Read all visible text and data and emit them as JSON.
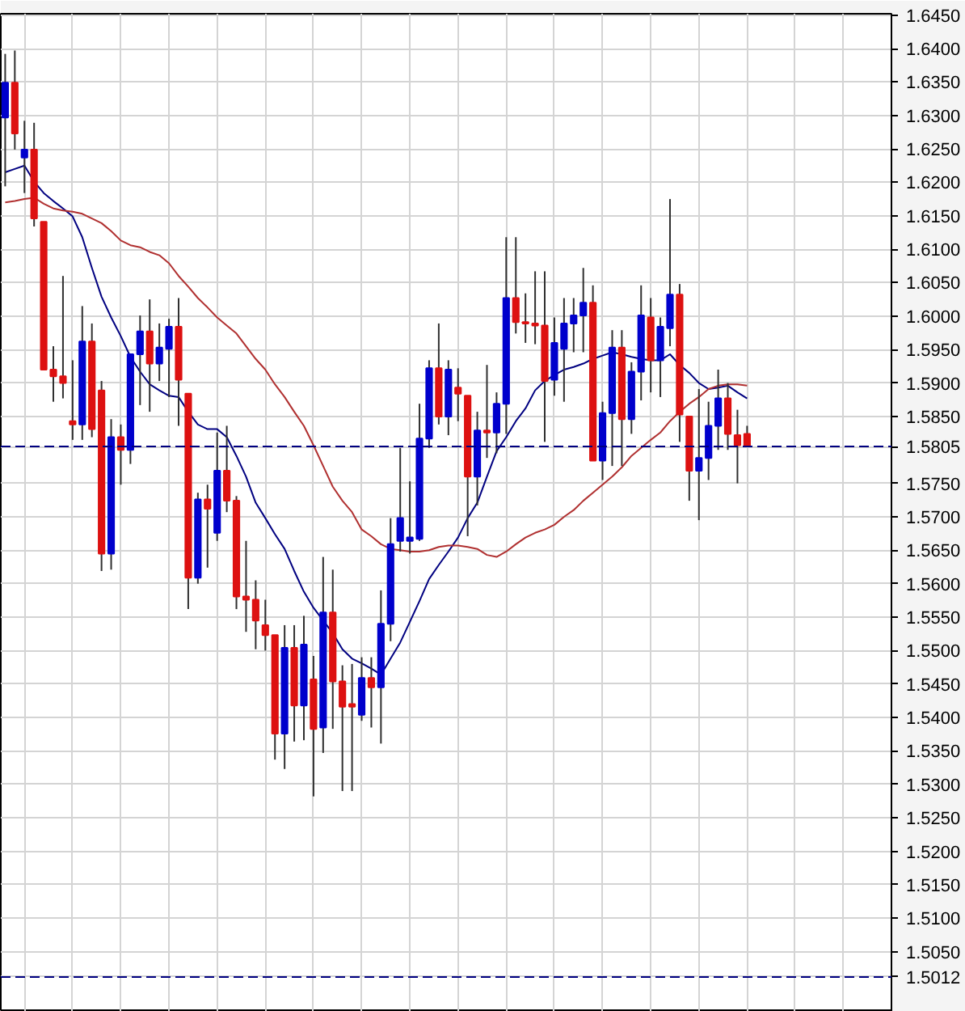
{
  "chart_data": {
    "type": "candlestick",
    "categories": [
      null,
      null,
      null,
      null,
      null,
      null,
      null,
      null,
      null,
      null,
      null,
      null,
      null,
      null,
      null,
      null,
      null,
      null,
      null,
      null,
      null,
      null,
      null,
      null,
      null,
      null,
      null,
      null,
      null,
      null,
      null,
      null,
      null,
      null,
      null,
      null,
      null,
      null,
      null,
      null,
      null,
      null,
      null,
      null,
      null,
      null,
      null,
      null,
      null,
      null,
      null,
      null,
      null,
      null,
      null,
      null,
      null,
      null,
      null,
      null,
      null,
      null,
      null,
      null,
      null,
      null,
      null,
      null,
      null,
      null,
      null,
      null,
      null,
      null,
      null,
      null,
      null,
      null
    ],
    "ohlc": [
      [
        1.6297,
        1.6392,
        1.6194,
        1.6349
      ],
      [
        1.6349,
        1.6397,
        1.6249,
        1.6273
      ],
      [
        1.6237,
        1.6292,
        1.6184,
        1.6249
      ],
      [
        1.6249,
        1.6289,
        1.6134,
        1.6146
      ],
      [
        1.6141,
        1.6141,
        1.592,
        1.592
      ],
      [
        1.592,
        1.5955,
        1.5872,
        1.591
      ],
      [
        1.591,
        1.606,
        1.5877,
        1.59
      ],
      [
        1.5843,
        1.5934,
        1.5815,
        1.5838
      ],
      [
        1.5838,
        1.6015,
        1.5815,
        1.5962
      ],
      [
        1.5962,
        1.5989,
        1.5819,
        1.5831
      ],
      [
        1.5889,
        1.5903,
        1.5619,
        1.5645
      ],
      [
        1.5645,
        1.5846,
        1.5621,
        1.5819
      ],
      [
        1.5819,
        1.5838,
        1.5748,
        1.58
      ],
      [
        1.58,
        1.5943,
        1.5779,
        1.5943
      ],
      [
        1.5943,
        1.6001,
        1.5867,
        1.5977
      ],
      [
        1.5977,
        1.6025,
        1.5857,
        1.5929
      ],
      [
        1.5929,
        1.5989,
        1.5903,
        1.5953
      ],
      [
        1.5951,
        1.5996,
        1.5879,
        1.5984
      ],
      [
        1.5984,
        1.6027,
        1.5836,
        1.5905
      ],
      [
        1.5884,
        1.5884,
        1.5562,
        1.5609
      ],
      [
        1.5609,
        1.5736,
        1.56,
        1.5726
      ],
      [
        1.5726,
        1.5748,
        1.5624,
        1.5712
      ],
      [
        1.5676,
        1.5826,
        1.5664,
        1.5769
      ],
      [
        1.5769,
        1.5836,
        1.5707,
        1.5724
      ],
      [
        1.5724,
        1.5731,
        1.5562,
        1.5581
      ],
      [
        1.5581,
        1.5664,
        1.5528,
        1.5576
      ],
      [
        1.5576,
        1.5605,
        1.5502,
        1.5545
      ],
      [
        1.5538,
        1.5576,
        1.55,
        1.5523
      ],
      [
        1.5523,
        1.5523,
        1.5337,
        1.5376
      ],
      [
        1.5376,
        1.5538,
        1.5323,
        1.5504
      ],
      [
        1.5504,
        1.5538,
        1.5364,
        1.5418
      ],
      [
        1.5418,
        1.5552,
        1.5366,
        1.5509
      ],
      [
        1.5457,
        1.5492,
        1.5282,
        1.5383
      ],
      [
        1.5385,
        1.564,
        1.5347,
        1.5557
      ],
      [
        1.5557,
        1.5621,
        1.5383,
        1.5454
      ],
      [
        1.5454,
        1.5478,
        1.529,
        1.5416
      ],
      [
        1.542,
        1.548,
        1.529,
        1.5416
      ],
      [
        1.5404,
        1.549,
        1.5395,
        1.5459
      ],
      [
        1.5459,
        1.549,
        1.5385,
        1.5445
      ],
      [
        1.5445,
        1.559,
        1.5361,
        1.554
      ],
      [
        1.554,
        1.5698,
        1.5514,
        1.5659
      ],
      [
        1.5664,
        1.5803,
        1.5648,
        1.5698
      ],
      [
        1.5664,
        1.5753,
        1.5645,
        1.5669
      ],
      [
        1.5667,
        1.5869,
        1.5664,
        1.5817
      ],
      [
        1.5817,
        1.5934,
        1.5803,
        1.5922
      ],
      [
        1.5922,
        1.5989,
        1.5838,
        1.585
      ],
      [
        1.585,
        1.5934,
        1.5822,
        1.592
      ],
      [
        1.5893,
        1.5922,
        1.5843,
        1.5884
      ],
      [
        1.5881,
        1.5881,
        1.5671,
        1.576
      ],
      [
        1.576,
        1.5857,
        1.5717,
        1.5829
      ],
      [
        1.5829,
        1.5927,
        1.5788,
        1.5826
      ],
      [
        1.5826,
        1.5886,
        1.5795,
        1.5869
      ],
      [
        1.5869,
        1.6118,
        1.5824,
        1.6027
      ],
      [
        1.6027,
        1.6118,
        1.5974,
        1.5991
      ],
      [
        1.5991,
        1.6034,
        1.596,
        1.5989
      ],
      [
        1.5989,
        1.6067,
        1.5958,
        1.5986
      ],
      [
        1.5986,
        1.6067,
        1.5812,
        1.5903
      ],
      [
        1.5905,
        1.5998,
        1.5881,
        1.596
      ],
      [
        1.5951,
        1.6027,
        1.5872,
        1.5989
      ],
      [
        1.5989,
        1.6027,
        1.5946,
        1.6001
      ],
      [
        1.6001,
        1.6072,
        1.5946,
        1.602
      ],
      [
        1.602,
        1.6046,
        1.5784,
        1.5784
      ],
      [
        1.5784,
        1.5872,
        1.5755,
        1.5855
      ],
      [
        1.5855,
        1.5979,
        1.5776,
        1.5953
      ],
      [
        1.5953,
        1.5979,
        1.5776,
        1.5846
      ],
      [
        1.5846,
        1.5931,
        1.5824,
        1.5917
      ],
      [
        1.5917,
        1.6046,
        1.5874,
        1.6001
      ],
      [
        1.5998,
        1.6027,
        1.5886,
        1.5934
      ],
      [
        1.5934,
        1.5998,
        1.5879,
        1.5984
      ],
      [
        1.5982,
        1.6175,
        1.5955,
        1.6032
      ],
      [
        1.6032,
        1.6048,
        1.5812,
        1.5853
      ],
      [
        1.585,
        1.585,
        1.5724,
        1.5769
      ],
      [
        1.5769,
        1.5891,
        1.5695,
        1.5788
      ],
      [
        1.5788,
        1.5872,
        1.5755,
        1.5836
      ],
      [
        1.5836,
        1.592,
        1.58,
        1.5877
      ],
      [
        1.5877,
        1.59,
        1.58,
        1.5824
      ],
      [
        1.5822,
        1.586,
        1.575,
        1.5807
      ],
      [
        1.5824,
        1.5836,
        1.5805,
        1.5805
      ]
    ],
    "colors": [
      "#0000cc",
      "#dd1111",
      "#0000cc",
      "#dd1111",
      "#dd1111",
      "#dd1111",
      "#dd1111",
      "#dd1111",
      "#0000cc",
      "#dd1111",
      "#dd1111",
      "#0000cc",
      "#dd1111",
      "#0000cc",
      "#0000cc",
      "#dd1111",
      "#0000cc",
      "#0000cc",
      "#dd1111",
      "#dd1111",
      "#0000cc",
      "#dd1111",
      "#0000cc",
      "#dd1111",
      "#dd1111",
      "#dd1111",
      "#dd1111",
      "#dd1111",
      "#dd1111",
      "#0000cc",
      "#dd1111",
      "#0000cc",
      "#dd1111",
      "#0000cc",
      "#dd1111",
      "#dd1111",
      "#dd1111",
      "#0000cc",
      "#dd1111",
      "#0000cc",
      "#0000cc",
      "#0000cc",
      "#0000cc",
      "#0000cc",
      "#0000cc",
      "#dd1111",
      "#0000cc",
      "#dd1111",
      "#dd1111",
      "#0000cc",
      "#dd1111",
      "#0000cc",
      "#0000cc",
      "#dd1111",
      "#dd1111",
      "#dd1111",
      "#dd1111",
      "#0000cc",
      "#0000cc",
      "#0000cc",
      "#0000cc",
      "#dd1111",
      "#0000cc",
      "#0000cc",
      "#dd1111",
      "#0000cc",
      "#0000cc",
      "#dd1111",
      "#0000cc",
      "#0000cc",
      "#dd1111",
      "#dd1111",
      "#0000cc",
      "#0000cc",
      "#0000cc",
      "#dd1111",
      "#dd1111",
      "#dd1111"
    ],
    "series": [
      {
        "type": "line",
        "color": "#000080",
        "values": [
          1.6215,
          1.622,
          1.6225,
          1.6201,
          1.6184,
          1.6172,
          1.6161,
          1.6149,
          1.6118,
          1.6072,
          1.6029,
          1.5998,
          1.597,
          1.5939,
          1.5917,
          1.5898,
          1.5889,
          1.5881,
          1.5879,
          1.5857,
          1.5838,
          1.5831,
          1.5831,
          1.5819,
          1.5791,
          1.576,
          1.5721,
          1.5698,
          1.5674,
          1.5652,
          1.5619,
          1.5588,
          1.5564,
          1.5545,
          1.5526,
          1.5502,
          1.5488,
          1.5481,
          1.5473,
          1.5464,
          1.5488,
          1.5512,
          1.5543,
          1.5574,
          1.5607,
          1.5628,
          1.5648,
          1.5669,
          1.5698,
          1.5721,
          1.576,
          1.5798,
          1.5819,
          1.5843,
          1.5862,
          1.5889,
          1.5903,
          1.5912,
          1.592,
          1.5924,
          1.5929,
          1.5936,
          1.5941,
          1.5946,
          1.5943,
          1.5939,
          1.5936,
          1.5934,
          1.5934,
          1.5943,
          1.5927,
          1.5915,
          1.59,
          1.5891,
          1.5893,
          1.5896,
          1.5886,
          1.5877
        ]
      },
      {
        "type": "line",
        "color": "#b03030",
        "values": [
          1.617,
          1.6172,
          1.6175,
          1.6177,
          1.6168,
          1.6161,
          1.6158,
          1.6156,
          1.6153,
          1.6146,
          1.6139,
          1.6127,
          1.6113,
          1.6106,
          1.6103,
          1.6096,
          1.6091,
          1.6079,
          1.606,
          1.6044,
          1.6027,
          1.6013,
          1.5998,
          1.5986,
          1.5974,
          1.5955,
          1.5936,
          1.592,
          1.5898,
          1.5879,
          1.5857,
          1.5836,
          1.5807,
          1.5776,
          1.5745,
          1.5724,
          1.5707,
          1.5681,
          1.5671,
          1.5659,
          1.5652,
          1.565,
          1.5648,
          1.5648,
          1.565,
          1.5655,
          1.5657,
          1.5657,
          1.5655,
          1.5652,
          1.5643,
          1.564,
          1.5648,
          1.5659,
          1.5669,
          1.5676,
          1.5681,
          1.5688,
          1.57,
          1.571,
          1.5724,
          1.5736,
          1.5748,
          1.576,
          1.5774,
          1.5791,
          1.5803,
          1.5815,
          1.5826,
          1.5843,
          1.5857,
          1.5869,
          1.5879,
          1.5891,
          1.5896,
          1.5898,
          1.5898,
          1.5896
        ]
      }
    ],
    "ylim": [
      1.496,
      1.6452
    ],
    "yticks": [
      {
        "value": 1.505,
        "label": "1.5050"
      },
      {
        "value": 1.51,
        "label": "1.5100"
      },
      {
        "value": 1.515,
        "label": "1.5150"
      },
      {
        "value": 1.52,
        "label": "1.5200"
      },
      {
        "value": 1.525,
        "label": "1.5250"
      },
      {
        "value": 1.53,
        "label": "1.5300"
      },
      {
        "value": 1.535,
        "label": "1.5350"
      },
      {
        "value": 1.54,
        "label": "1.5400"
      },
      {
        "value": 1.545,
        "label": "1.5450"
      },
      {
        "value": 1.55,
        "label": "1.5500"
      },
      {
        "value": 1.555,
        "label": "1.5550"
      },
      {
        "value": 1.56,
        "label": "1.5600"
      },
      {
        "value": 1.565,
        "label": "1.5650"
      },
      {
        "value": 1.57,
        "label": "1.5700"
      },
      {
        "value": 1.575,
        "label": "1.5750"
      },
      {
        "value": 1.585,
        "label": "1.5850"
      },
      {
        "value": 1.59,
        "label": "1.5900"
      },
      {
        "value": 1.595,
        "label": "1.5950"
      },
      {
        "value": 1.6,
        "label": "1.6000"
      },
      {
        "value": 1.605,
        "label": "1.6050"
      },
      {
        "value": 1.61,
        "label": "1.6100"
      },
      {
        "value": 1.615,
        "label": "1.6150"
      },
      {
        "value": 1.62,
        "label": "1.6200"
      },
      {
        "value": 1.625,
        "label": "1.6250"
      },
      {
        "value": 1.63,
        "label": "1.6300"
      },
      {
        "value": 1.635,
        "label": "1.6350"
      },
      {
        "value": 1.64,
        "label": "1.6400"
      },
      {
        "value": 1.645,
        "label": "1.6450"
      }
    ],
    "ref_lines": [
      {
        "axis": "y",
        "value": 1.5805,
        "label": "1.5805",
        "color": "#000080",
        "line_style": "dashed"
      },
      {
        "axis": "y",
        "value": 1.5012,
        "label": "1.5012",
        "color": "#000080",
        "line_style": "dashed"
      }
    ],
    "grid": true,
    "tick_labels": "y"
  }
}
